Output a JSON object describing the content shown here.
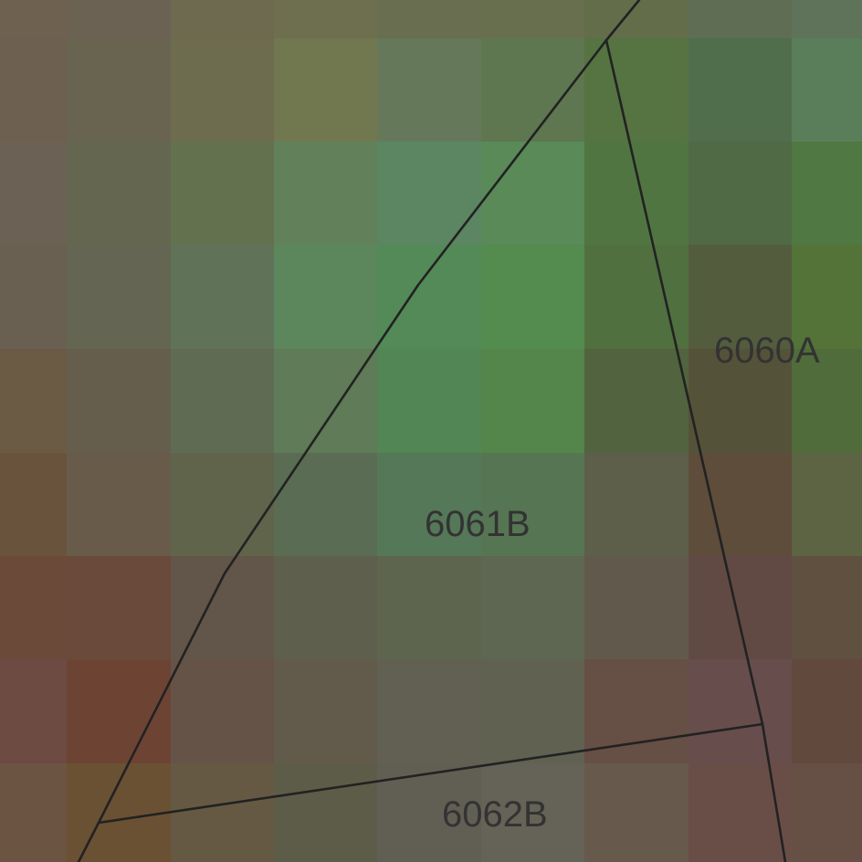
{
  "map": {
    "parcels": [
      {
        "id": "6060A",
        "label": "6060A"
      },
      {
        "id": "6061B",
        "label": "6061B"
      },
      {
        "id": "6062B",
        "label": "6062B"
      }
    ],
    "raster_colors": [
      [
        "#6e6150",
        "#6b6253",
        "#6e6a4f",
        "#6e6f4f",
        "#696e50",
        "#686f4e",
        "#636d4a",
        "#5f6d55",
        "#5e7359"
      ],
      [
        "#6d6051",
        "#69644f",
        "#6d6c4e",
        "#717850",
        "#65785a",
        "#5e7750",
        "#567342",
        "#506d4c",
        "#5a7e5a"
      ],
      [
        "#6b6154",
        "#646650",
        "#64714f",
        "#62805a",
        "#5c8562",
        "#598a58",
        "#517541",
        "#4f6a45",
        "#4f7842"
      ],
      [
        "#6a6052",
        "#646553",
        "#607258",
        "#5c875d",
        "#538a58",
        "#548b4e",
        "#50703f",
        "#545c3e",
        "#537338"
      ],
      [
        "#6b5a44",
        "#665e4d",
        "#5f6b53",
        "#607b57",
        "#528654",
        "#54854b",
        "#52633f",
        "#545339",
        "#4f6c3a"
      ],
      [
        "#6a533d",
        "#685b4a",
        "#5f644b",
        "#5a6c53",
        "#557858",
        "#567553",
        "#5d5f4a",
        "#5e4d3b",
        "#5c6443"
      ],
      [
        "#6b4a3a",
        "#6a4a3a",
        "#62554a",
        "#5f5f4d",
        "#5e654e",
        "#5d6752",
        "#615a4c",
        "#614a44",
        "#60503f"
      ],
      [
        "#6d4a42",
        "#6d4434",
        "#665347",
        "#625a4b",
        "#616053",
        "#616152",
        "#664f44",
        "#674d4c",
        "#62493e"
      ],
      [
        "#6c5442",
        "#6a5133",
        "#655944",
        "#5d5c48",
        "#615f54",
        "#656257",
        "#675a4c",
        "#694e48",
        "#665046"
      ]
    ]
  }
}
